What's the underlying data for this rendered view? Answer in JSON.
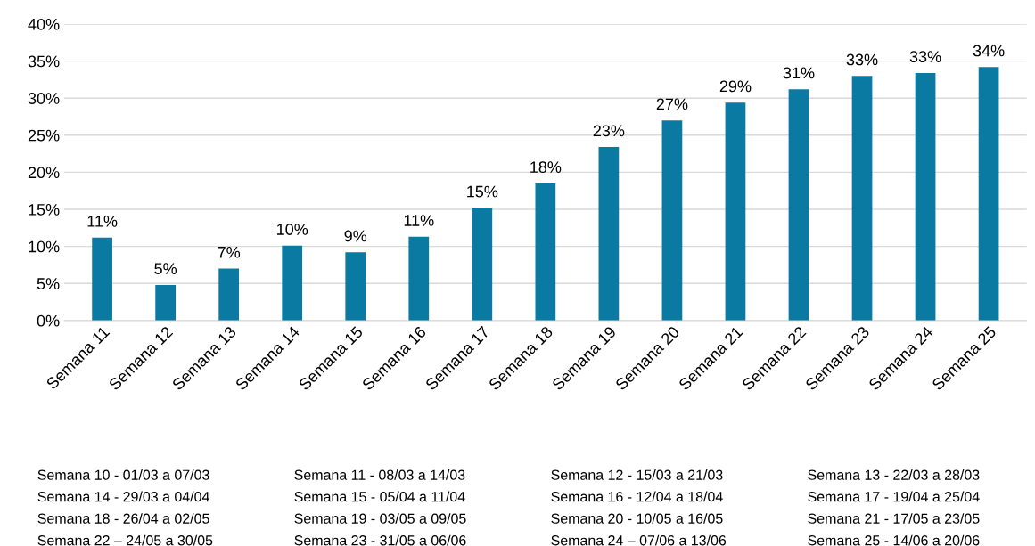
{
  "chart_data": {
    "type": "bar",
    "categories": [
      "Semana 11",
      "Semana 12",
      "Semana 13",
      "Semana 14",
      "Semana 15",
      "Semana 16",
      "Semana 17",
      "Semana 18",
      "Semana 19",
      "Semana 20",
      "Semana 21",
      "Semana 22",
      "Semana 23",
      "Semana 24",
      "Semana 25"
    ],
    "values": [
      11.2,
      4.8,
      7.0,
      10.1,
      9.2,
      11.3,
      15.2,
      18.5,
      23.4,
      27.0,
      29.4,
      31.2,
      33.0,
      33.4,
      34.2
    ],
    "value_labels": [
      "11%",
      "5%",
      "7%",
      "10%",
      "9%",
      "11%",
      "15%",
      "18%",
      "23%",
      "27%",
      "29%",
      "31%",
      "33%",
      "33%",
      "34%"
    ],
    "color": "#0a7aa3",
    "ylim": [
      0,
      40
    ],
    "yticks": [
      {
        "value": 0,
        "label": "0%"
      },
      {
        "value": 5,
        "label": "5%"
      },
      {
        "value": 10,
        "label": "10%"
      },
      {
        "value": 15,
        "label": "15%"
      },
      {
        "value": 20,
        "label": "20%"
      },
      {
        "value": 25,
        "label": "25%"
      },
      {
        "value": 30,
        "label": "30%"
      },
      {
        "value": 35,
        "label": "35%"
      },
      {
        "value": 40,
        "label": "40%"
      }
    ],
    "grid": "y",
    "annotations": [
      "Semana 10 - 01/03 a 07/03",
      "Semana 11 - 08/03 a 14/03",
      "Semana 12 - 15/03 a 21/03",
      "Semana 13 - 22/03 a 28/03",
      "Semana 14 - 29/03 a 04/04",
      "Semana 15 - 05/04 a 11/04",
      "Semana 16 - 12/04 a 18/04",
      "Semana 17 - 19/04 a 25/04",
      "Semana 18 - 26/04 a 02/05",
      "Semana 19 - 03/05 a 09/05",
      "Semana 20 - 10/05 a 16/05",
      "Semana 21 - 17/05 a 23/05",
      "Semana 22 – 24/05 a 30/05",
      "Semana 23 - 31/05 a 06/06",
      "Semana 24 – 07/06 a 13/06",
      "Semana 25 - 14/06 a 20/06"
    ]
  }
}
